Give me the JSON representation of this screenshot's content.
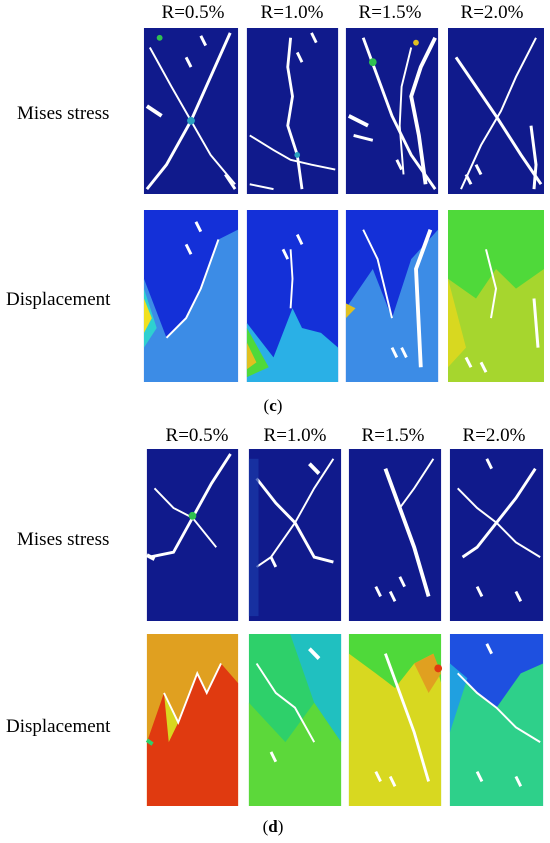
{
  "headers": [
    "R=0.5%",
    "R=1.0%",
    "R=1.5%",
    "R=2.0%"
  ],
  "rows": {
    "mises": "Mises stress",
    "displacement": "Displacement"
  },
  "captions": {
    "c": "c",
    "d": "d"
  },
  "colors": {
    "stress_field": "#101a8c",
    "crack": "#ffffff",
    "disp_c_top": "#1430d8",
    "disp_c_bottom": "#3c8ce6",
    "disp_c_green": "#4fd93a",
    "disp_d_orange": "#e0a020",
    "disp_d_red": "#e03a10",
    "disp_d_green": "#2ed06a",
    "disp_d_yellow": "#d8d820",
    "disp_d_blue": "#1e50e0"
  }
}
